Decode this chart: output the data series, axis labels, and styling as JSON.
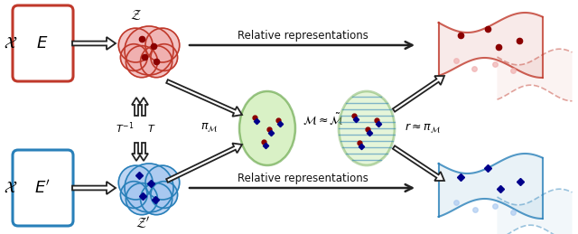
{
  "bg_color": "#ffffff",
  "red_color": "#c0392b",
  "red_light": "#f0b0b0",
  "blue_color": "#2980b9",
  "blue_light": "#a8c8f0",
  "green_color": "#5a9e3a",
  "green_light": "#c0e8a0",
  "dark_red": "#8b0000",
  "dark_blue": "#00008b",
  "arrow_color": "#222222",
  "text_color": "#111111"
}
